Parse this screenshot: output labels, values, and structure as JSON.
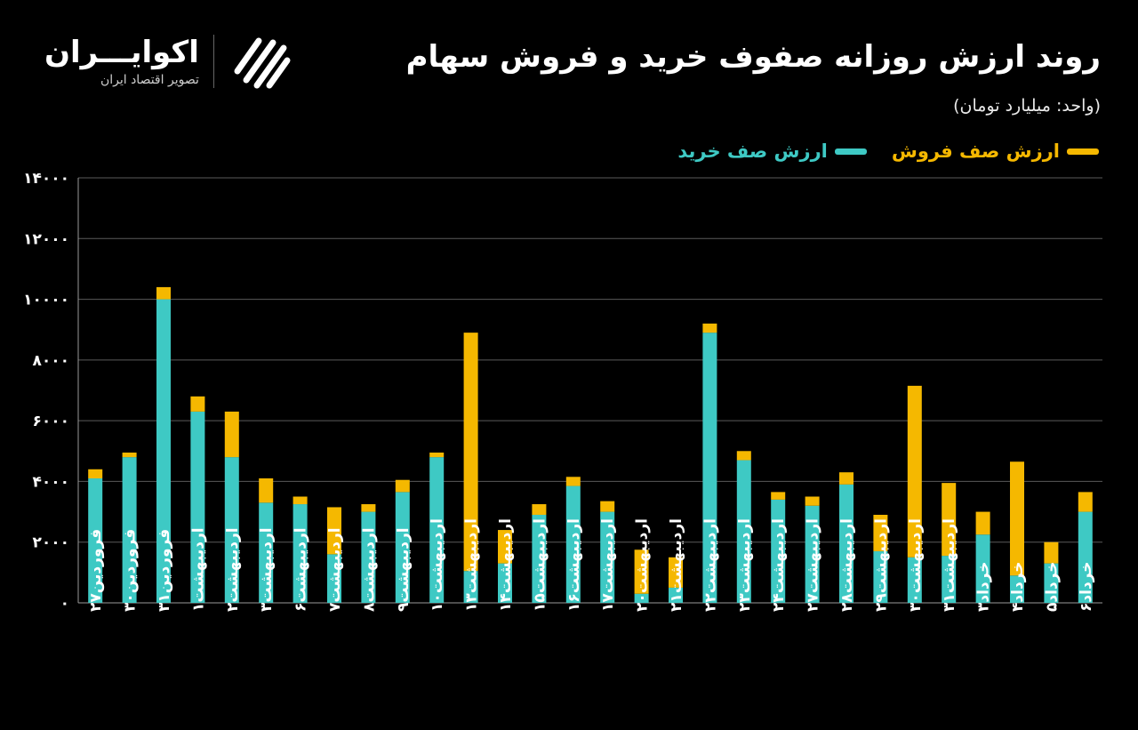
{
  "title": "روند ارزش روزانه صفوف خرید و فروش سهام",
  "unit": "(واحد: میلیارد تومان)",
  "logo": {
    "name": "اکوایـــران",
    "tagline": "تصویر اقتصاد ایران"
  },
  "colors": {
    "background": "#000000",
    "buy": "#3ec9c4",
    "sell": "#f5b800",
    "grid": "#5a5a5a",
    "text": "#ffffff"
  },
  "chart_data": {
    "type": "bar",
    "stacked": true,
    "title": "روند ارزش روزانه صفوف خرید و فروش سهام",
    "ylim": [
      0,
      14000
    ],
    "y_ticks": [
      0,
      2000,
      4000,
      6000,
      8000,
      10000,
      12000,
      14000
    ],
    "y_tick_labels": [
      "۰",
      "۲۰۰۰",
      "۴۰۰۰",
      "۶۰۰۰",
      "۸۰۰۰",
      "۱۰۰۰۰",
      "۱۲۰۰۰",
      "۱۴۰۰۰"
    ],
    "grid": true,
    "legend_position": "top-right",
    "categories": [
      "فروردین۲۷",
      "فروردین۳۰",
      "فروردین۳۱",
      "اردیبهشت۱",
      "اردیبهشت۲",
      "اردیبهشت۳",
      "اردیبهشت۶",
      "اردیبهشت۷",
      "اردیبهشت۸",
      "اردیبهشت۹",
      "اردیبهشت۱۰",
      "اردیبهشت۱۳",
      "اردیبهشت۱۴",
      "اردیبهشت۱۵",
      "اردیبهشت۱۶",
      "اردیبهشت۱۷",
      "اردیبهشت۲۰",
      "اردیبهشت۲۱",
      "اردیبهشت۲۲",
      "اردیبهشت۲۳",
      "اردیبهشت۲۴",
      "اردیبهشت۲۷",
      "اردیبهشت۲۸",
      "اردیبهشت۲۹",
      "اردیبهشت۳۰",
      "اردیبهشت۳۱",
      "خرداد۳",
      "خرداد۴",
      "خرداد۵",
      "خرداد۶"
    ],
    "series": [
      {
        "name": "ارزش صف خرید",
        "values": [
          4100,
          4800,
          10000,
          6300,
          4800,
          3300,
          3250,
          1600,
          3000,
          3650,
          4800,
          1050,
          1300,
          2900,
          3850,
          3000,
          300,
          500,
          8900,
          4700,
          3400,
          3200,
          3900,
          1700,
          1500,
          1550,
          2250,
          900,
          1300,
          3000
        ]
      },
      {
        "name": "ارزش صف فروش",
        "values": [
          300,
          150,
          400,
          500,
          1500,
          800,
          250,
          1550,
          250,
          400,
          150,
          7850,
          1100,
          350,
          300,
          350,
          1450,
          1000,
          300,
          300,
          250,
          300,
          400,
          1200,
          5650,
          2400,
          750,
          3750,
          700,
          650
        ]
      }
    ]
  }
}
